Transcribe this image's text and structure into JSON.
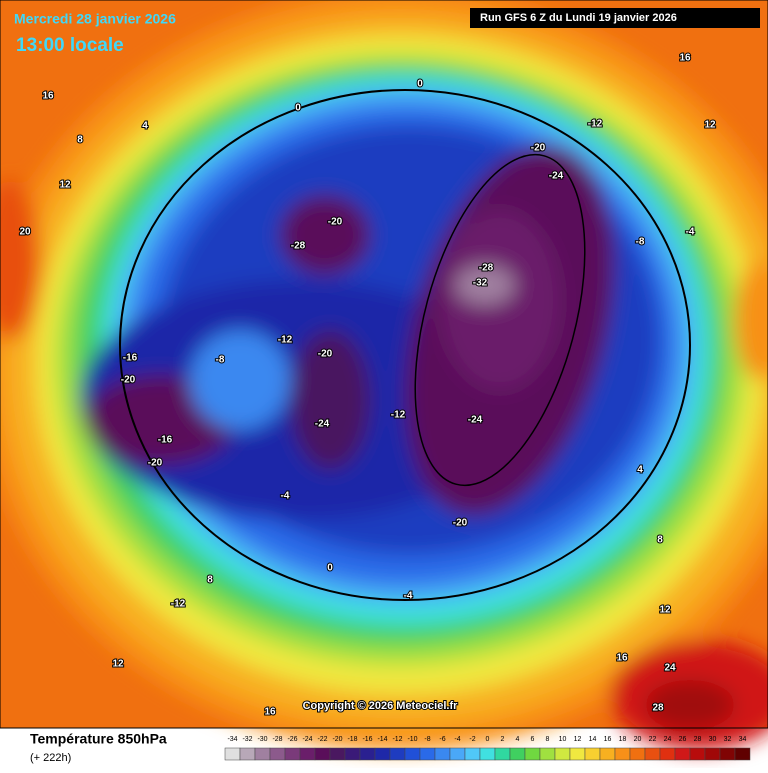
{
  "header": {
    "date": "Mercredi 28 janvier 2026",
    "time": "13:00 locale",
    "run": "Run GFS 6 Z du Lundi 19 janvier 2026"
  },
  "copyright": "Copyright © 2026 Meteociel.fr",
  "legend": {
    "title": "Température 850hPa",
    "lead": "(+ 222h)",
    "values": [
      -34,
      -32,
      -30,
      -28,
      -26,
      -24,
      -22,
      -20,
      -18,
      -16,
      -14,
      -12,
      -10,
      -8,
      -6,
      -4,
      -2,
      0,
      2,
      4,
      6,
      8,
      10,
      12,
      14,
      16,
      18,
      20,
      22,
      24,
      26,
      28,
      30,
      32,
      34
    ],
    "colors": [
      "#e0e0e0",
      "#b8a8b8",
      "#a080a0",
      "#8c5a8c",
      "#7a3a7a",
      "#6a1e6a",
      "#5a0e5a",
      "#4a1860",
      "#3a1a78",
      "#2a2090",
      "#1e28a8",
      "#1e3cc0",
      "#2050d8",
      "#2a6ae8",
      "#3a88f0",
      "#4aa8f8",
      "#50c8f8",
      "#40e0e0",
      "#30d8a0",
      "#40d060",
      "#70d840",
      "#a0e040",
      "#d0e840",
      "#f0e840",
      "#f8d030",
      "#f8b020",
      "#f89018",
      "#f07010",
      "#e85010",
      "#e03010",
      "#d01818",
      "#b80c0c",
      "#a00808",
      "#800404",
      "#600000"
    ]
  },
  "map_labels": [
    -32,
    -28,
    -24,
    -20,
    -24,
    -20,
    -12,
    -16,
    -20,
    -16,
    -20,
    -12,
    -8,
    -4,
    0,
    0,
    4,
    8,
    12,
    16,
    20,
    16,
    12,
    -8,
    -4,
    4,
    8,
    12,
    16,
    24,
    28,
    -12,
    8,
    -4,
    0,
    12,
    16,
    -20,
    -28,
    -12,
    -24,
    -20
  ]
}
